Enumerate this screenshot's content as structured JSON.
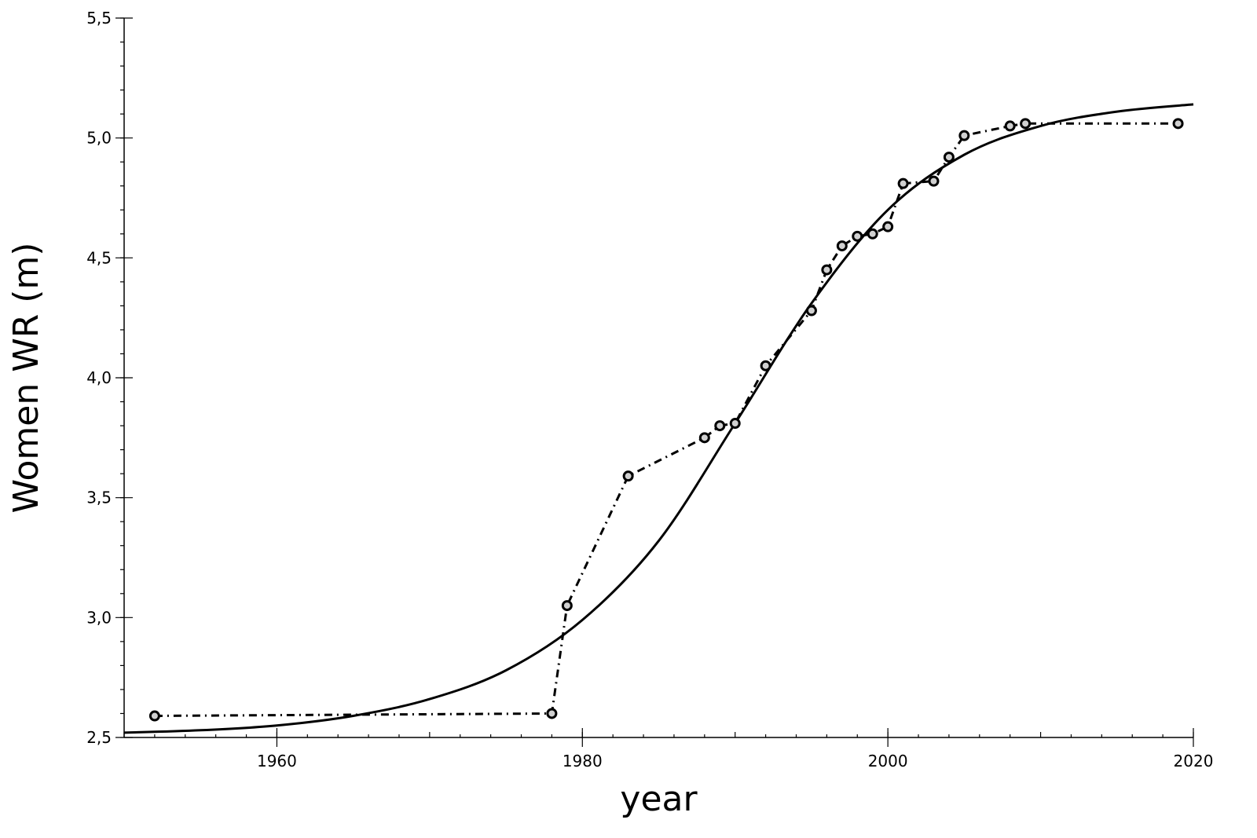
{
  "chart_data": {
    "type": "line",
    "xlabel": "year",
    "ylabel": "Women WR (m)",
    "xlim": [
      1950,
      2020
    ],
    "ylim": [
      2.5,
      5.5
    ],
    "x_ticks": [
      1960,
      1980,
      2000,
      2020
    ],
    "x_tick_labels": [
      "1960",
      "1980",
      "2000",
      "2020"
    ],
    "y_ticks": [
      2.5,
      3.0,
      3.5,
      4.0,
      4.5,
      5.0,
      5.5
    ],
    "y_tick_labels": [
      "2,5",
      "3,0",
      "3,5",
      "4,0",
      "4,5",
      "5,0",
      "5,5"
    ],
    "grid": false,
    "series": [
      {
        "style": "dash-dot with circle markers",
        "x": [
          1952,
          1978,
          1979,
          1983,
          1988,
          1989,
          1990,
          1992,
          1995,
          1996,
          1997,
          1998,
          1999,
          2000,
          2001,
          2003,
          2004,
          2005,
          2008,
          2009,
          2019
        ],
        "y": [
          2.59,
          2.6,
          3.05,
          3.59,
          3.75,
          3.8,
          3.81,
          4.05,
          4.28,
          4.45,
          4.55,
          4.59,
          4.6,
          4.63,
          4.81,
          4.82,
          4.92,
          5.01,
          5.05,
          5.06,
          5.06
        ]
      },
      {
        "style": "solid fitted curve",
        "x": [
          1950,
          1955,
          1960,
          1965,
          1970,
          1975,
          1980,
          1985,
          1990,
          1995,
          2000,
          2005,
          2010,
          2015,
          2020
        ],
        "y": [
          2.52,
          2.53,
          2.55,
          2.59,
          2.66,
          2.78,
          2.99,
          3.32,
          3.81,
          4.31,
          4.7,
          4.93,
          5.05,
          5.11,
          5.14
        ]
      }
    ]
  }
}
